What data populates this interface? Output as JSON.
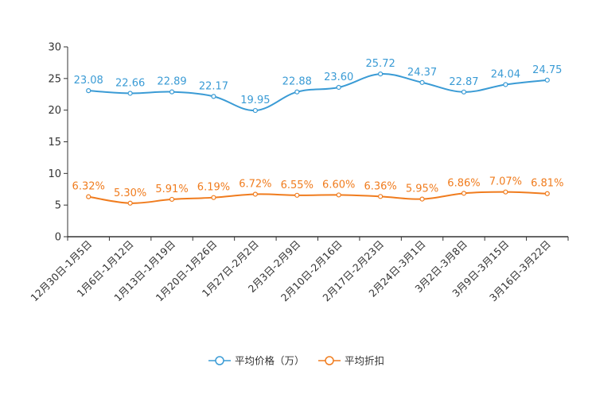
{
  "chart_data": {
    "type": "line",
    "title": "",
    "xlabel": "",
    "ylabel": "",
    "ylim": [
      0,
      30
    ],
    "yticks": [
      0,
      5,
      10,
      15,
      20,
      25,
      30
    ],
    "grid": false,
    "legend_position": "bottom-center",
    "categories": [
      "12月30日-1月5日",
      "1月6日-1月12日",
      "1月13日-1月19日",
      "1月20日-1月26日",
      "1月27日-2月2日",
      "2月3日-2月9日",
      "2月10日-2月16日",
      "2月17日-2月23日",
      "2月24日-3月1日",
      "3月2日-3月8日",
      "3月9日-3月15日",
      "3月16日-3月22日"
    ],
    "series": [
      {
        "name": "平均价格（万）",
        "color": "#3a9bd5",
        "values": [
          23.08,
          22.66,
          22.89,
          22.17,
          19.95,
          22.88,
          23.6,
          25.72,
          24.37,
          22.87,
          24.04,
          24.75
        ],
        "labels": [
          "23.08",
          "22.66",
          "22.89",
          "22.17",
          "19.95",
          "22.88",
          "23.60",
          "25.72",
          "24.37",
          "22.87",
          "24.04",
          "24.75"
        ]
      },
      {
        "name": "平均折扣",
        "color": "#f07c1e",
        "values": [
          6.32,
          5.3,
          5.91,
          6.19,
          6.72,
          6.55,
          6.6,
          6.36,
          5.95,
          6.86,
          7.07,
          6.81
        ],
        "labels": [
          "6.32%",
          "5.30%",
          "5.91%",
          "6.19%",
          "6.72%",
          "6.55%",
          "6.60%",
          "6.36%",
          "5.95%",
          "6.86%",
          "7.07%",
          "6.81%"
        ]
      }
    ]
  }
}
